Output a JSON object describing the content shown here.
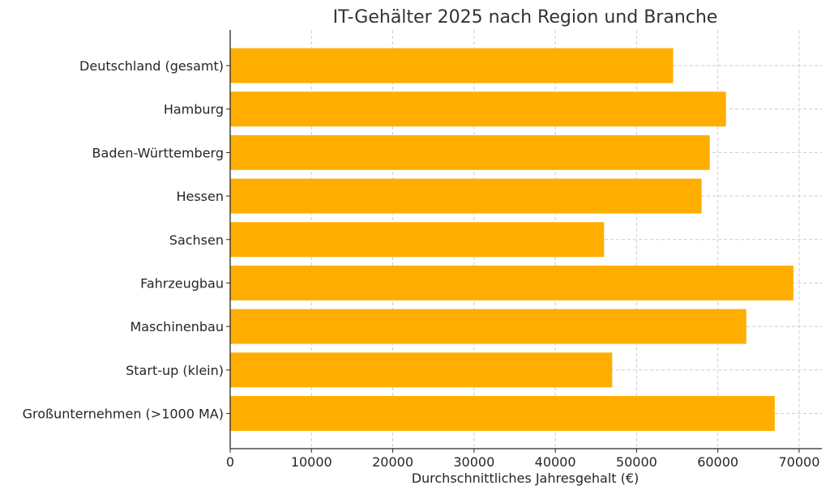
{
  "chart_data": {
    "type": "bar",
    "orientation": "horizontal",
    "title": "IT-Gehälter 2025 nach Region und Branche",
    "xlabel": "Durchschnittliches Jahresgehalt (€)",
    "ylabel": "",
    "categories": [
      "Deutschland (gesamt)",
      "Hamburg",
      "Baden-Württemberg",
      "Hessen",
      "Sachsen",
      "Fahrzeugbau",
      "Maschinenbau",
      "Start-up (klein)",
      "Großunternehmen (>1000 MA)"
    ],
    "values": [
      54500,
      61000,
      59000,
      58000,
      46000,
      69300,
      63500,
      47000,
      67000
    ],
    "xlim": [
      0,
      72800
    ],
    "xticks": [
      0,
      10000,
      20000,
      30000,
      40000,
      50000,
      60000,
      70000
    ],
    "xtick_labels": [
      "0",
      "10000",
      "20000",
      "30000",
      "40000",
      "50000",
      "60000",
      "70000"
    ],
    "grid": true,
    "bar_color": "#FFAE00"
  }
}
